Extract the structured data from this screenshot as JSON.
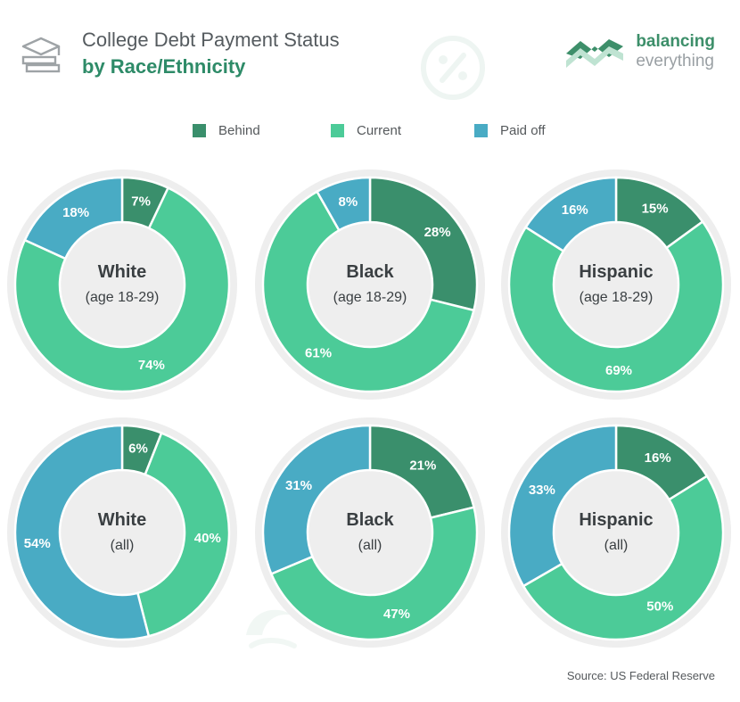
{
  "header": {
    "title_line1": "College Debt Payment Status",
    "title_line2": "by Race/Ethnicity",
    "icon": "graduation-cap-books-icon"
  },
  "brand": {
    "line1": "balancing",
    "line2": "everything",
    "logo_icon": "balancing-everything-logo-icon"
  },
  "colors": {
    "behind": "#3a8f6c",
    "current": "#4ccb98",
    "paid_off": "#49abc4",
    "ring": "#eeeeee",
    "label": "#ffffff",
    "center_title": "#3a3f42",
    "center_sub": "#3a3f42"
  },
  "legend": [
    {
      "label": "Behind",
      "color": "#3a8f6c"
    },
    {
      "label": "Current",
      "color": "#4ccb98"
    },
    {
      "label": "Paid off",
      "color": "#49abc4"
    }
  ],
  "chart_data": [
    {
      "type": "pie",
      "title": "White",
      "subtitle": "(age 18-29)",
      "categories": [
        "Behind",
        "Current",
        "Paid off"
      ],
      "values": [
        7,
        74,
        18
      ]
    },
    {
      "type": "pie",
      "title": "Black",
      "subtitle": "(age 18-29)",
      "categories": [
        "Behind",
        "Current",
        "Paid off"
      ],
      "values": [
        28,
        61,
        8
      ]
    },
    {
      "type": "pie",
      "title": "Hispanic",
      "subtitle": "(age 18-29)",
      "categories": [
        "Behind",
        "Current",
        "Paid off"
      ],
      "values": [
        15,
        69,
        16
      ]
    },
    {
      "type": "pie",
      "title": "White",
      "subtitle": "(all)",
      "categories": [
        "Behind",
        "Current",
        "Paid off"
      ],
      "values": [
        6,
        40,
        54
      ]
    },
    {
      "type": "pie",
      "title": "Black",
      "subtitle": "(all)",
      "categories": [
        "Behind",
        "Current",
        "Paid off"
      ],
      "values": [
        21,
        47,
        31
      ]
    },
    {
      "type": "pie",
      "title": "Hispanic",
      "subtitle": "(all)",
      "categories": [
        "Behind",
        "Current",
        "Paid off"
      ],
      "values": [
        16,
        50,
        33
      ]
    }
  ],
  "source": "Source: US Federal Reserve"
}
